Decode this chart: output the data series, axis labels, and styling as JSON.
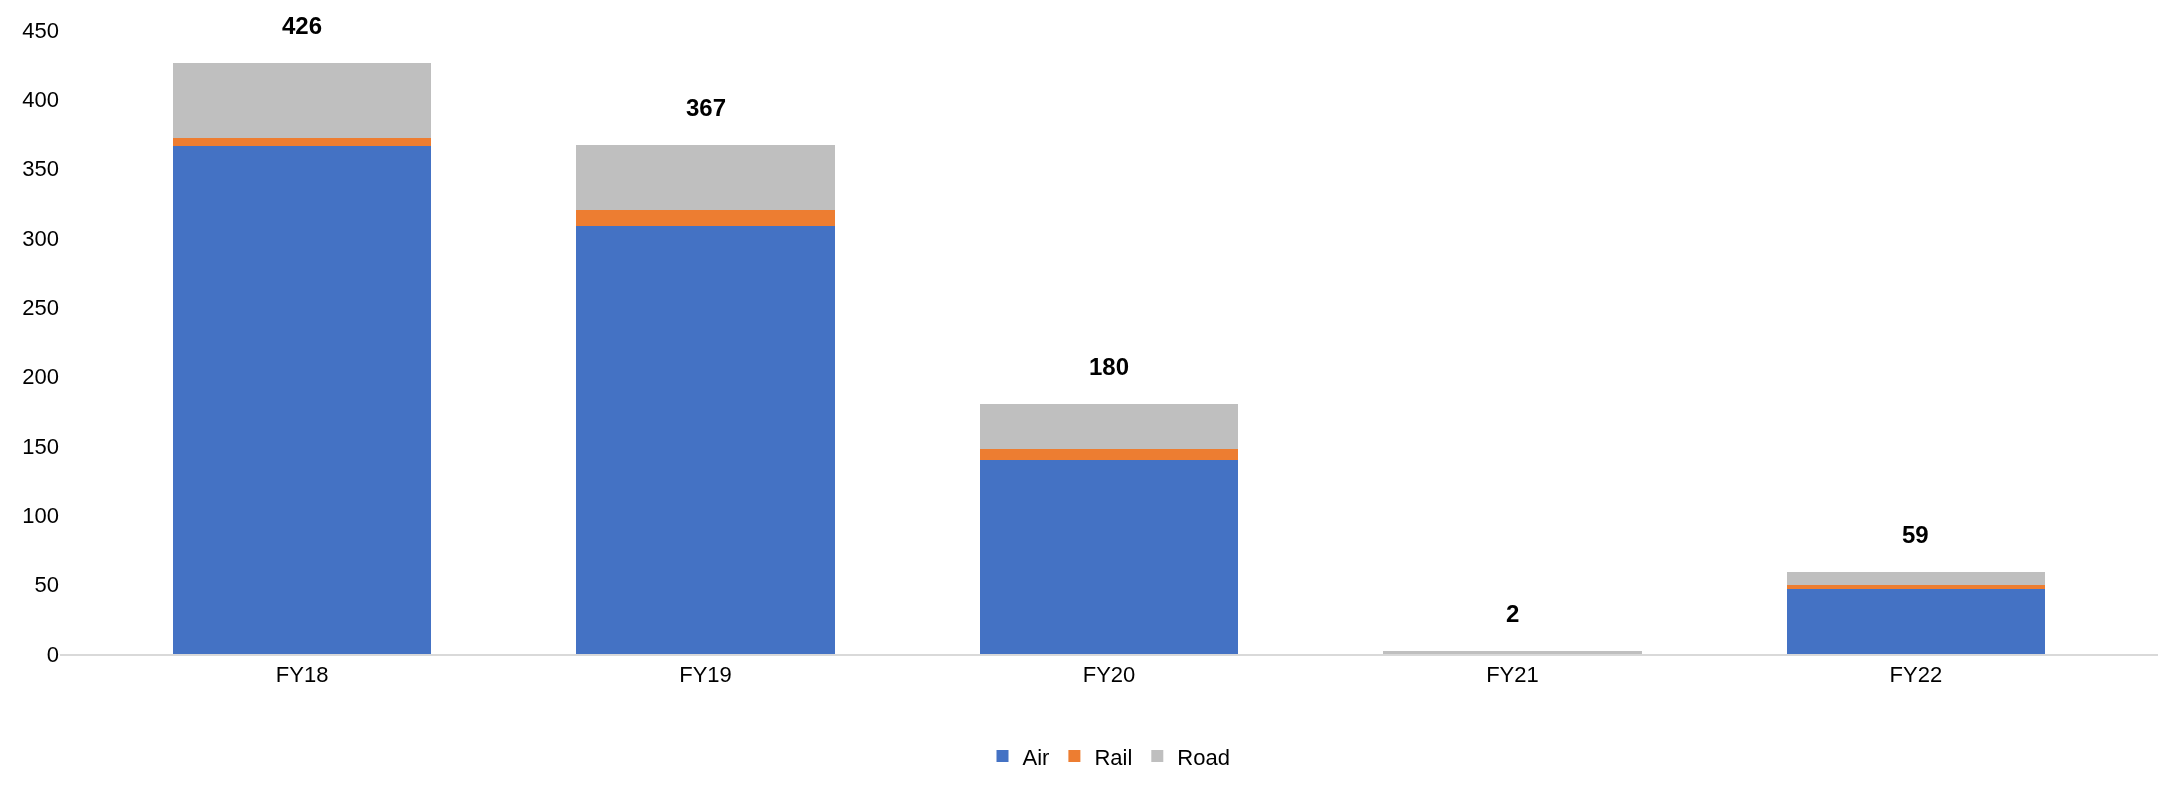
{
  "chart_data": {
    "type": "bar",
    "stacked": true,
    "categories": [
      "FY18",
      "FY19",
      "FY20",
      "FY21",
      "FY22"
    ],
    "series": [
      {
        "name": "Air",
        "color": "#4472c4",
        "values": [
          366,
          309,
          140,
          0,
          47
        ]
      },
      {
        "name": "Rail",
        "color": "#ed7d31",
        "values": [
          6,
          11,
          8,
          0,
          3
        ]
      },
      {
        "name": "Road",
        "color": "#bfbfbf",
        "values": [
          54,
          47,
          32,
          2,
          9
        ]
      }
    ],
    "totals": [
      "426",
      "367",
      "180",
      "2",
      "59"
    ],
    "ylim": [
      0,
      450
    ],
    "yticks": [
      0,
      50,
      100,
      150,
      200,
      250,
      300,
      350,
      400,
      450
    ],
    "grid": false,
    "legend": "bottom"
  }
}
